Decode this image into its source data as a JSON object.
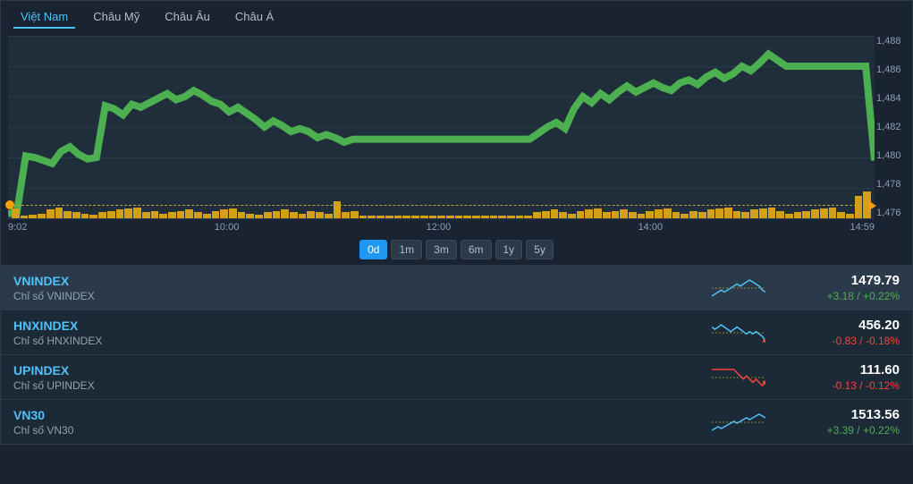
{
  "tabs": [
    {
      "label": "Việt Nam",
      "active": true
    },
    {
      "label": "Châu Mỹ",
      "active": false
    },
    {
      "label": "Châu Âu",
      "active": false
    },
    {
      "label": "Châu Á",
      "active": false
    }
  ],
  "chart": {
    "type": "line",
    "line_color": "#4caf50",
    "background_color": "#202d3a",
    "grid_color": "#2a3a4a",
    "dashed_color": "#b8a43a",
    "volume_color": "#d4a017",
    "ylim": [
      1476,
      1488
    ],
    "yticks": [
      "1,488",
      "1,486",
      "1,484",
      "1,482",
      "1,480",
      "1,478",
      "1,476"
    ],
    "xticks": [
      "9:02",
      "10:00",
      "12:00",
      "14:00",
      "14:59"
    ],
    "series": [
      1476.3,
      1476.4,
      1480.1,
      1480.0,
      1479.8,
      1479.6,
      1480.4,
      1480.7,
      1480.2,
      1479.9,
      1480.0,
      1483.4,
      1483.2,
      1482.8,
      1483.5,
      1483.3,
      1483.6,
      1483.9,
      1484.2,
      1483.8,
      1484.0,
      1484.4,
      1484.1,
      1483.7,
      1483.5,
      1483.0,
      1483.3,
      1482.9,
      1482.5,
      1482.0,
      1482.4,
      1482.1,
      1481.7,
      1481.9,
      1481.7,
      1481.3,
      1481.5,
      1481.3,
      1481.0,
      1481.2,
      1481.2,
      1481.2,
      1481.2,
      1481.2,
      1481.2,
      1481.2,
      1481.2,
      1481.2,
      1481.2,
      1481.2,
      1481.2,
      1481.2,
      1481.2,
      1481.2,
      1481.2,
      1481.2,
      1481.2,
      1481.2,
      1481.2,
      1481.2,
      1481.6,
      1482.0,
      1482.3,
      1481.9,
      1483.2,
      1484.0,
      1483.6,
      1484.2,
      1483.8,
      1484.3,
      1484.7,
      1484.3,
      1484.6,
      1484.9,
      1484.6,
      1484.4,
      1484.9,
      1485.1,
      1484.8,
      1485.3,
      1485.6,
      1485.2,
      1485.5,
      1486.0,
      1485.7,
      1486.2,
      1486.8,
      1486.4,
      1486.0,
      1486.0,
      1486.0,
      1486.0,
      1486.0,
      1486.0,
      1486.0,
      1486.0,
      1486.0,
      1486.0,
      1479.8
    ],
    "volumes": [
      8,
      2,
      3,
      4,
      7,
      9,
      6,
      5,
      4,
      3,
      5,
      6,
      7,
      8,
      9,
      5,
      6,
      4,
      5,
      6,
      7,
      5,
      4,
      6,
      7,
      8,
      5,
      4,
      3,
      5,
      6,
      7,
      5,
      4,
      6,
      5,
      4,
      14,
      5,
      6,
      2,
      2,
      2,
      2,
      2,
      2,
      2,
      2,
      2,
      2,
      2,
      2,
      2,
      2,
      2,
      2,
      2,
      2,
      2,
      2,
      5,
      6,
      7,
      5,
      4,
      6,
      7,
      8,
      5,
      6,
      7,
      5,
      4,
      6,
      7,
      8,
      5,
      4,
      6,
      5,
      7,
      8,
      9,
      6,
      5,
      7,
      8,
      9,
      6,
      4,
      5,
      6,
      7,
      8,
      9,
      5,
      4,
      18,
      22
    ]
  },
  "timeranges": [
    {
      "label": "0d",
      "active": true
    },
    {
      "label": "1m",
      "active": false
    },
    {
      "label": "3m",
      "active": false
    },
    {
      "label": "6m",
      "active": false
    },
    {
      "label": "1y",
      "active": false
    },
    {
      "label": "5y",
      "active": false
    }
  ],
  "indices": [
    {
      "name": "VNINDEX",
      "desc": "Chỉ số VNINDEX",
      "value": "1479.79",
      "change_abs": "+3.18",
      "change_pct": "+0.22%",
      "direction": "pos",
      "spark_color": "#4fc3f7",
      "spark": [
        4,
        5,
        6,
        7,
        6,
        7,
        8,
        9,
        10,
        9,
        10,
        11,
        12,
        11,
        10,
        9,
        7,
        6
      ],
      "highlight": true
    },
    {
      "name": "HNXINDEX",
      "desc": "Chỉ số HNXINDEX",
      "value": "456.20",
      "change_abs": "-0.83",
      "change_pct": "-0.18%",
      "direction": "neg",
      "spark_color": "#4fc3f7",
      "spark": [
        11,
        10,
        11,
        12,
        11,
        10,
        9,
        10,
        11,
        10,
        9,
        8,
        9,
        8,
        9,
        8,
        7,
        5
      ],
      "highlight": false
    },
    {
      "name": "UPINDEX",
      "desc": "Chỉ số UPINDEX",
      "value": "111.60",
      "change_abs": "-0.13",
      "change_pct": "-0.12%",
      "direction": "neg",
      "spark_color": "#f44336",
      "spark": [
        12,
        12,
        12,
        12,
        12,
        12,
        12,
        12,
        11,
        10,
        9,
        10,
        9,
        8,
        9,
        8,
        7,
        8
      ],
      "highlight": false
    },
    {
      "name": "VN30",
      "desc": "Chỉ số VN30",
      "value": "1513.56",
      "change_abs": "+3.39",
      "change_pct": "+0.22%",
      "direction": "pos",
      "spark_color": "#4fc3f7",
      "spark": [
        5,
        6,
        7,
        6,
        7,
        8,
        9,
        10,
        9,
        10,
        11,
        12,
        11,
        12,
        13,
        14,
        13,
        12
      ],
      "highlight": false
    }
  ]
}
